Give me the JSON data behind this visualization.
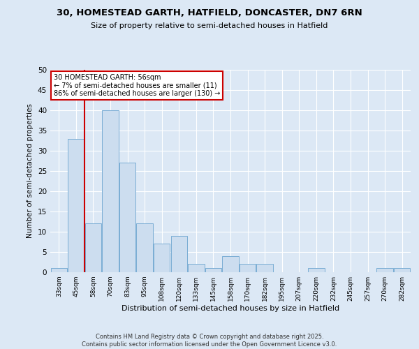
{
  "title1": "30, HOMESTEAD GARTH, HATFIELD, DONCASTER, DN7 6RN",
  "title2": "Size of property relative to semi-detached houses in Hatfield",
  "xlabel": "Distribution of semi-detached houses by size in Hatfield",
  "ylabel": "Number of semi-detached properties",
  "categories": [
    "33sqm",
    "45sqm",
    "58sqm",
    "70sqm",
    "83sqm",
    "95sqm",
    "108sqm",
    "120sqm",
    "133sqm",
    "145sqm",
    "158sqm",
    "170sqm",
    "182sqm",
    "195sqm",
    "207sqm",
    "220sqm",
    "232sqm",
    "245sqm",
    "257sqm",
    "270sqm",
    "282sqm"
  ],
  "values": [
    1,
    33,
    12,
    40,
    27,
    12,
    7,
    9,
    2,
    1,
    4,
    2,
    2,
    0,
    0,
    1,
    0,
    0,
    0,
    1,
    1
  ],
  "bar_color": "#ccddef",
  "bar_edge_color": "#7aadd4",
  "vline_color": "#cc0000",
  "vline_x": 1.5,
  "annotation_title": "30 HOMESTEAD GARTH: 56sqm",
  "annotation_line1": "← 7% of semi-detached houses are smaller (11)",
  "annotation_line2": "86% of semi-detached houses are larger (130) →",
  "annotation_box_color": "#ffffff",
  "annotation_box_edge": "#cc0000",
  "ylim": [
    0,
    50
  ],
  "yticks": [
    0,
    5,
    10,
    15,
    20,
    25,
    30,
    35,
    40,
    45,
    50
  ],
  "background_color": "#dce8f5",
  "grid_color": "#ffffff",
  "footer1": "Contains HM Land Registry data © Crown copyright and database right 2025.",
  "footer2": "Contains public sector information licensed under the Open Government Licence v3.0."
}
